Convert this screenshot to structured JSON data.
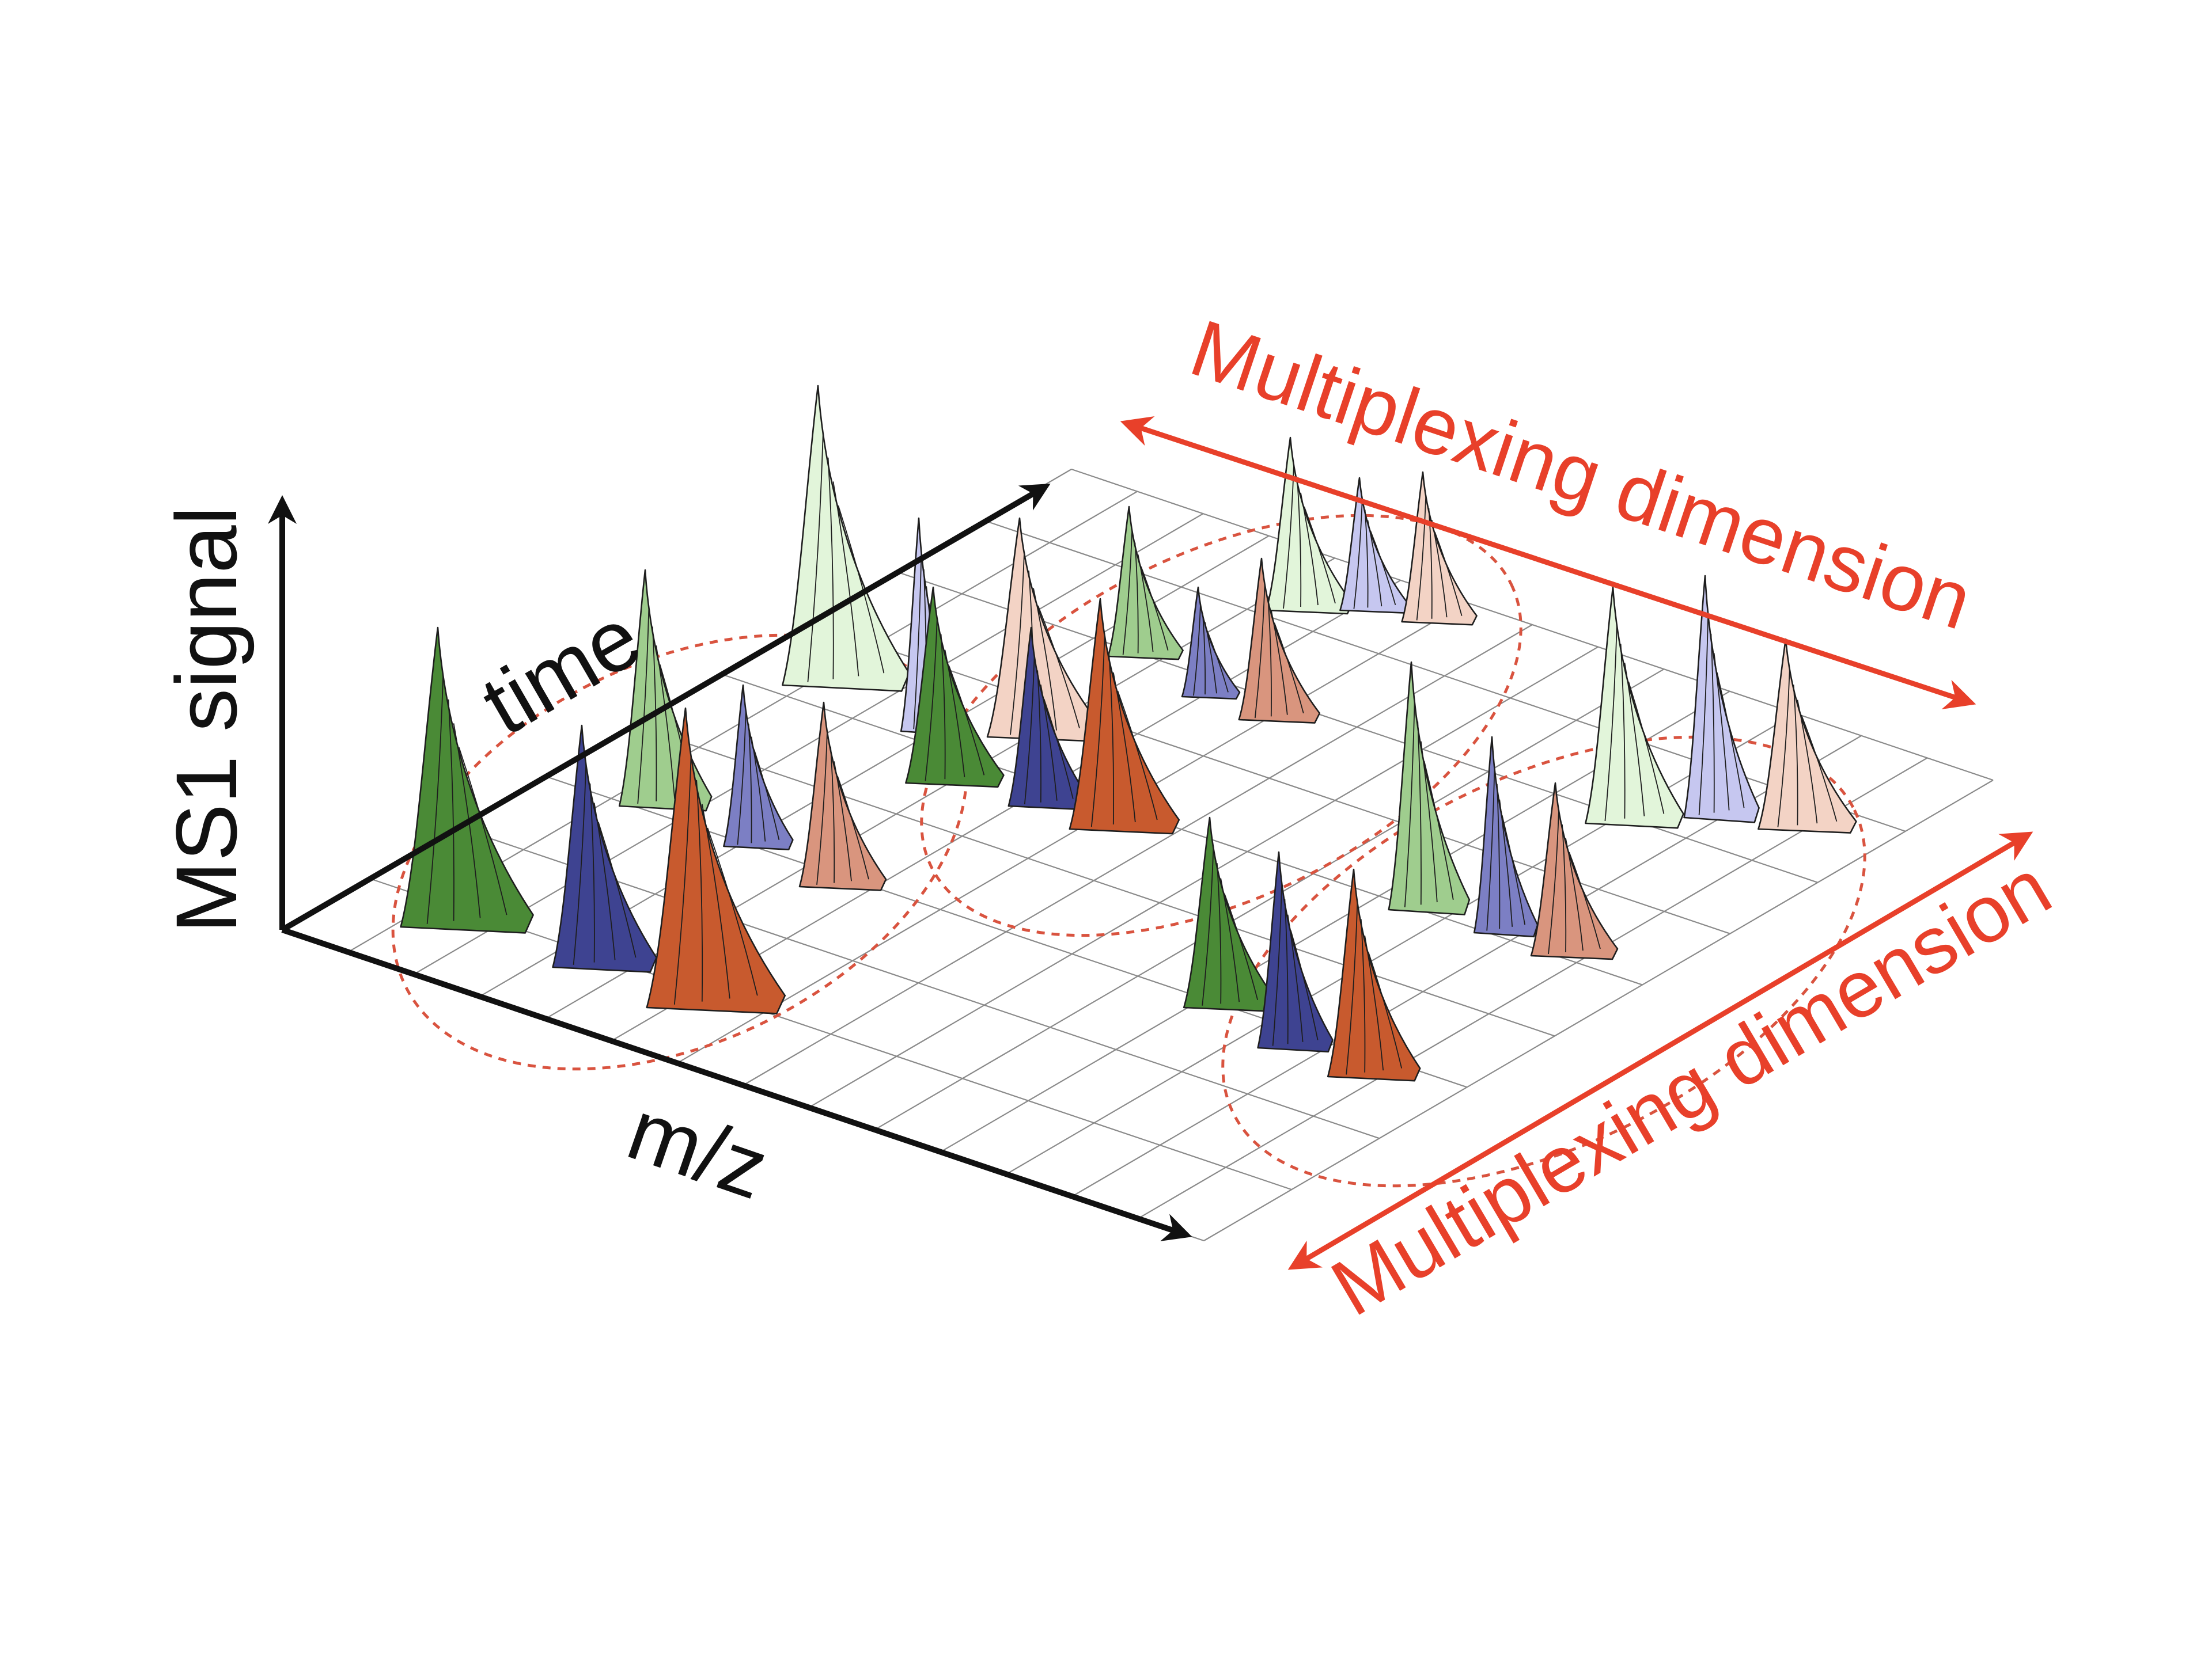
{
  "axes": {
    "y_label": "MS1 signal",
    "time_label": "time",
    "mz_label": "m/z"
  },
  "annotations": {
    "multiplexing_top": "Multiplexing dimension",
    "multiplexing_bottom": "Multiplexing dimension"
  },
  "colors": {
    "axis": "#111111",
    "accent_red": "#e8402a",
    "grid": "#8a8a8a",
    "dashed_group": "#d9533f",
    "dark_green": "#4a8a36",
    "dark_blue": "#3e4391",
    "dark_orange": "#c85a2e",
    "mid_green": "#9fcd8e",
    "mid_blue": "#7c7fc4",
    "mid_orange": "#d9957e",
    "light_green": "#e2f5da",
    "light_blue": "#c6c7f0",
    "light_pink": "#f3d3c5"
  },
  "peak_groups": [
    {
      "name": "group-front-left",
      "shades": [
        "dark",
        "mid"
      ]
    },
    {
      "name": "group-back-middle",
      "shades": [
        "light",
        "dark",
        "mid"
      ]
    },
    {
      "name": "group-back-right",
      "shades": [
        "light",
        "mid"
      ]
    },
    {
      "name": "group-front-right",
      "shades": [
        "dark",
        "mid",
        "light"
      ]
    }
  ]
}
